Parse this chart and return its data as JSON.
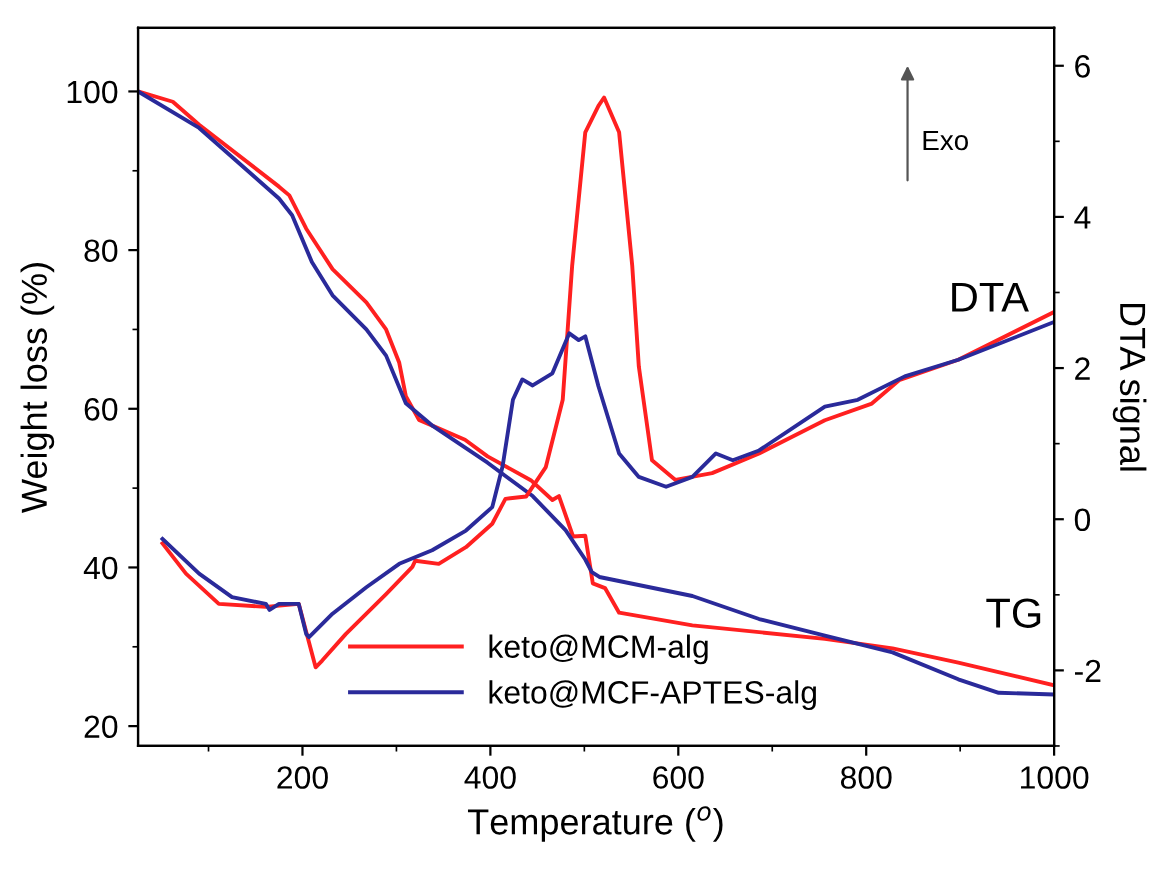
{
  "chart_data": {
    "type": "line",
    "xlabel": "Temperature ($^{o}$)",
    "ylabel": "Weight loss (%)",
    "y2label": "DTA signal",
    "xlim": [
      25,
      1000
    ],
    "xticks": [
      200,
      400,
      600,
      800,
      1000
    ],
    "ylim": [
      17.5,
      108
    ],
    "yticks": [
      20,
      40,
      60,
      80,
      100
    ],
    "y2lim": [
      -3,
      6.5
    ],
    "y2ticks": [
      -2,
      0,
      2,
      4,
      6
    ],
    "legend": "bottom left",
    "grid": false,
    "line_style": "solid",
    "marker": "none",
    "annotations": [
      "DTA",
      "TG",
      "Exo"
    ],
    "series": [
      {
        "name": "keto@MCM-alg",
        "color": "#ff2020",
        "x": [
          25,
          62,
          90,
          175,
          186,
          204,
          232,
          268,
          289,
          303,
          310,
          324,
          373,
          397,
          443,
          466,
          473,
          488,
          501,
          509,
          522,
          537,
          615,
          756,
          828,
          898,
          998
        ],
        "values": [
          100,
          98.7,
          95.8,
          88,
          86.9,
          82.7,
          77.6,
          73.4,
          70,
          65.8,
          61.6,
          58.6,
          56.1,
          54,
          51,
          48.5,
          49,
          43.9,
          44,
          38,
          37.4,
          34.3,
          32.7,
          31,
          29.8,
          28,
          25.2
        ]
      },
      {
        "name": "keto@MCF-APTES-alg",
        "color": "#2a2a9a",
        "x": [
          25,
          90,
          175,
          189,
          210,
          232,
          268,
          289,
          310,
          339,
          397,
          445,
          480,
          501,
          508,
          516,
          615,
          686,
          756,
          828,
          898,
          941,
          998
        ],
        "values": [
          100,
          95.4,
          86.5,
          84.4,
          78.5,
          74.3,
          70,
          66.7,
          60.7,
          57.8,
          53.2,
          49,
          44.7,
          41,
          39.4,
          38.8,
          36.4,
          33.5,
          31.4,
          29.3,
          25.9,
          24.2,
          24
        ]
      },
      {
        "color": "#ff2020",
        "axis": "y2",
        "x": [
          51,
          76,
          111,
          161,
          196,
          214,
          221,
          246,
          289,
          317,
          320,
          345,
          374,
          402,
          416,
          438,
          459,
          477,
          487,
          501,
          515,
          521,
          537,
          551,
          558,
          572,
          597,
          636,
          686,
          756,
          806,
          835,
          898,
          998
        ],
        "values": [
          -0.32,
          -0.72,
          -1.12,
          -1.16,
          -1.12,
          -1.96,
          -1.87,
          -1.52,
          -0.99,
          -0.63,
          -0.55,
          -0.59,
          -0.37,
          -0.06,
          0.27,
          0.3,
          0.69,
          1.58,
          3.35,
          5.12,
          5.47,
          5.58,
          5.12,
          3.35,
          2.02,
          0.78,
          0.52,
          0.61,
          0.87,
          1.31,
          1.53,
          1.84,
          2.11,
          2.73
        ]
      },
      {
        "color": "#2a2a9a",
        "axis": "y2",
        "x": [
          51,
          90,
          125,
          161,
          165,
          175,
          196,
          204,
          207,
          232,
          268,
          303,
          338,
          374,
          402,
          413,
          424,
          434,
          445,
          466,
          484,
          494,
          501,
          515,
          537,
          558,
          587,
          615,
          640,
          658,
          686,
          756,
          791,
          841,
          898,
          998
        ],
        "values": [
          -0.26,
          -0.72,
          -1.03,
          -1.12,
          -1.2,
          -1.12,
          -1.12,
          -1.52,
          -1.56,
          -1.25,
          -0.9,
          -0.59,
          -0.41,
          -0.15,
          0.16,
          0.7,
          1.58,
          1.85,
          1.77,
          1.93,
          2.46,
          2.37,
          2.42,
          1.76,
          0.87,
          0.56,
          0.43,
          0.56,
          0.87,
          0.78,
          0.91,
          1.49,
          1.58,
          1.89,
          2.11,
          2.6
        ]
      }
    ]
  }
}
